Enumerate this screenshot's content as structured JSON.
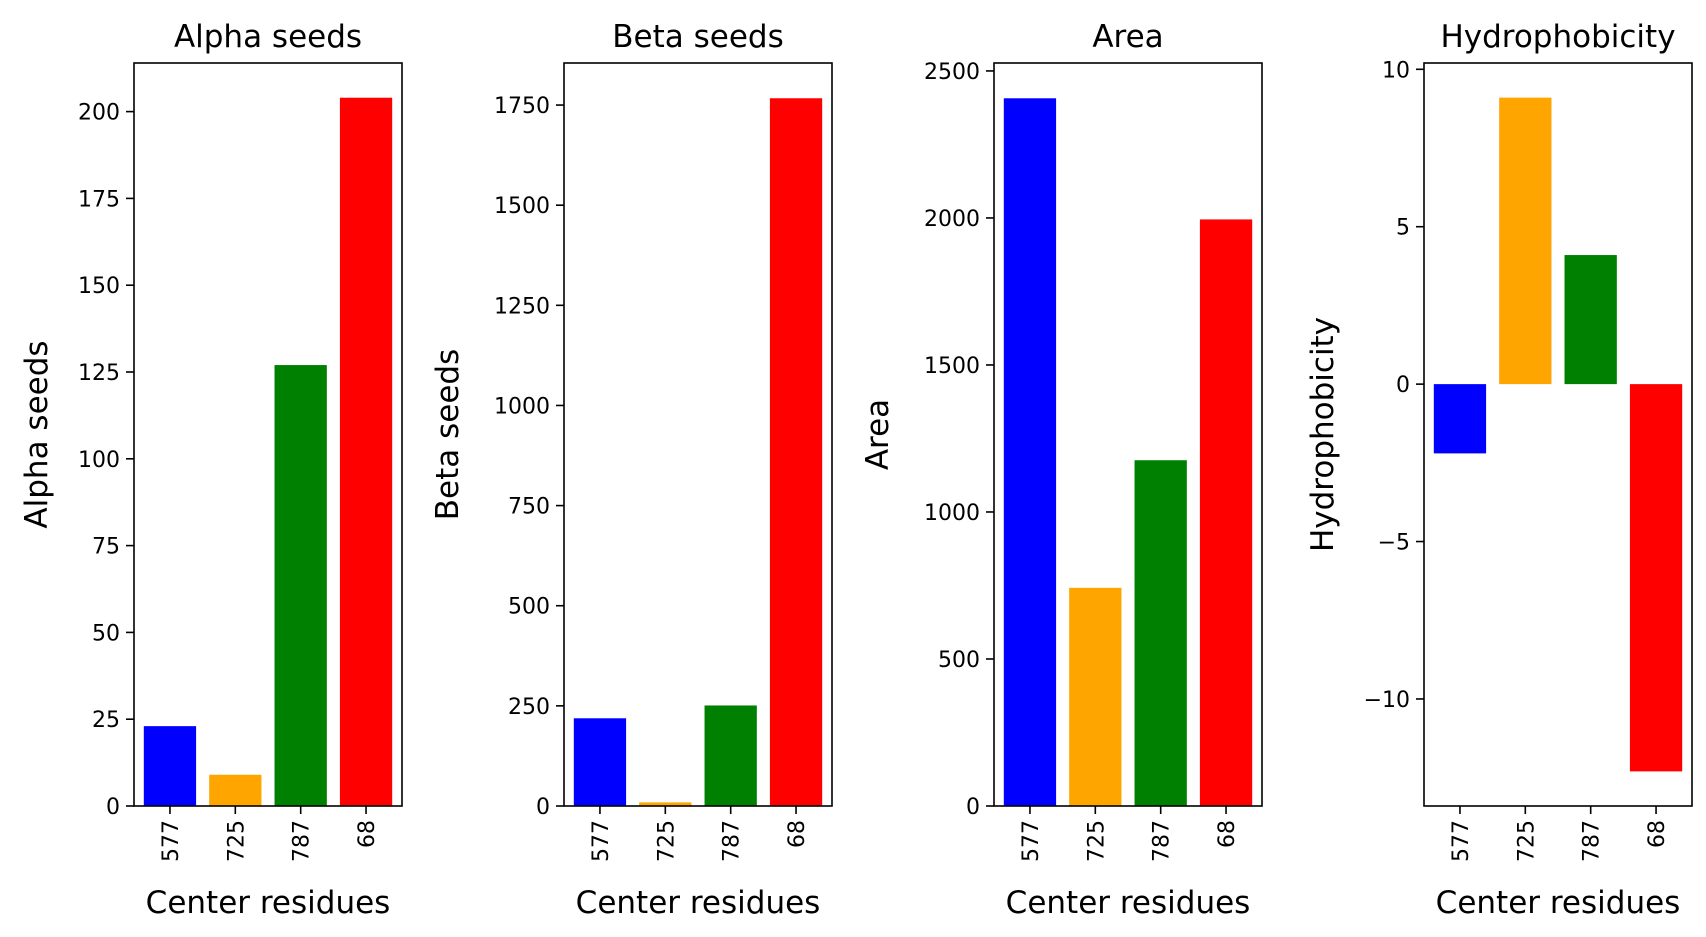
{
  "chart_data": [
    {
      "type": "bar",
      "title": "Alpha seeds",
      "xlabel": "Center residues",
      "ylabel": "Alpha seeds",
      "categories": [
        "577",
        "725",
        "787",
        "68"
      ],
      "values": [
        23,
        9,
        127,
        204
      ],
      "colors": [
        "#0000ff",
        "#ffa500",
        "#008000",
        "#ff0000"
      ],
      "ylim": [
        0,
        214
      ],
      "yticks": [
        0,
        25,
        50,
        75,
        100,
        125,
        150,
        175,
        200
      ],
      "ytick_labels": [
        "0",
        "25",
        "50",
        "75",
        "100",
        "125",
        "150",
        "175",
        "200"
      ],
      "grid": false
    },
    {
      "type": "bar",
      "title": "Beta seeds",
      "xlabel": "Center residues",
      "ylabel": "Beta seeds",
      "categories": [
        "577",
        "725",
        "787",
        "68"
      ],
      "values": [
        219,
        9,
        251,
        1767
      ],
      "colors": [
        "#0000ff",
        "#ffa500",
        "#008000",
        "#ff0000"
      ],
      "ylim": [
        0,
        1855
      ],
      "yticks": [
        0,
        250,
        500,
        750,
        1000,
        1250,
        1500,
        1750
      ],
      "ytick_labels": [
        "0",
        "250",
        "500",
        "750",
        "1000",
        "1250",
        "1500",
        "1750"
      ],
      "grid": false
    },
    {
      "type": "bar",
      "title": "Area",
      "xlabel": "Center residues",
      "ylabel": "Area",
      "categories": [
        "577",
        "725",
        "787",
        "68"
      ],
      "values": [
        2407,
        742,
        1176,
        1995
      ],
      "colors": [
        "#0000ff",
        "#ffa500",
        "#008000",
        "#ff0000"
      ],
      "ylim": [
        0,
        2527
      ],
      "yticks": [
        0,
        500,
        1000,
        1500,
        2000,
        2500
      ],
      "ytick_labels": [
        "0",
        "500",
        "1000",
        "1500",
        "2000",
        "2500"
      ],
      "grid": false
    },
    {
      "type": "bar",
      "title": "Hydrophobicity",
      "xlabel": "Center residues",
      "ylabel": "Hydrophobicity",
      "categories": [
        "577",
        "725",
        "787",
        "68"
      ],
      "values": [
        -2.2,
        9.1,
        4.1,
        -12.3
      ],
      "colors": [
        "#0000ff",
        "#ffa500",
        "#008000",
        "#ff0000"
      ],
      "ylim": [
        -13.4,
        10.2
      ],
      "yticks": [
        -10,
        -5,
        0,
        5,
        10
      ],
      "ytick_labels": [
        "−10",
        "−5",
        "0",
        "5",
        "10"
      ],
      "grid": false
    }
  ]
}
